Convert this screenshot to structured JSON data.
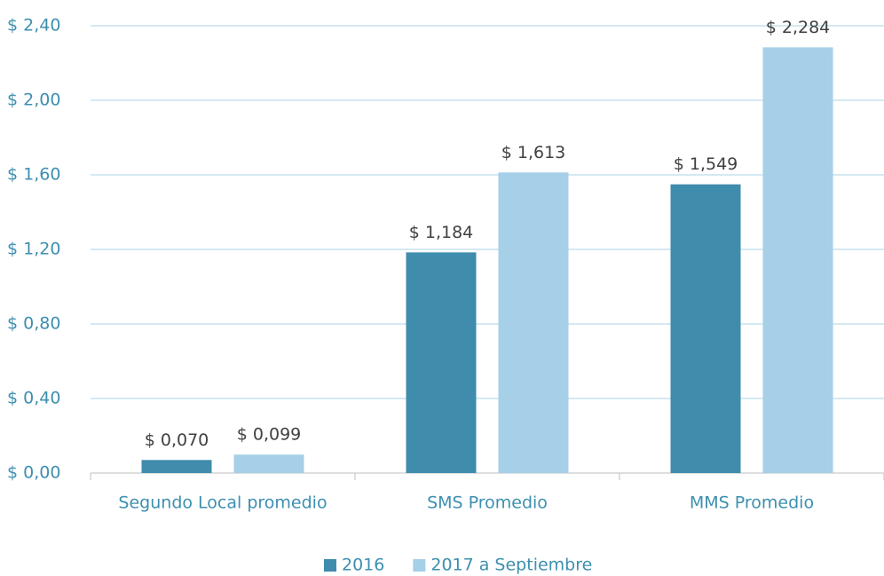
{
  "chart_data": {
    "type": "bar",
    "categories": [
      "Segundo Local promedio",
      "SMS Promedio",
      "MMS Promedio"
    ],
    "series": [
      {
        "name": "2016",
        "color": "#3f8cad",
        "values": [
          0.07,
          1.184,
          1.549
        ],
        "value_labels": [
          "$ 0,070",
          "$ 1,184",
          "$ 1,549"
        ]
      },
      {
        "name": "2017 a Septiembre",
        "color": "#a6cfe8",
        "values": [
          0.099,
          1.613,
          2.284
        ],
        "value_labels": [
          "$ 0,099",
          "$ 1,613",
          "$ 2,284"
        ]
      }
    ],
    "ylim": [
      0,
      2.4
    ],
    "yticks": [
      {
        "value": 0,
        "label": "$ 0,00"
      },
      {
        "value": 0.4,
        "label": "$ 0,40"
      },
      {
        "value": 0.8,
        "label": "$ 0,80"
      },
      {
        "value": 1.2,
        "label": "$ 1,20"
      },
      {
        "value": 1.6,
        "label": "$ 1,60"
      },
      {
        "value": 2.0,
        "label": "$ 2,00"
      },
      {
        "value": 2.4,
        "label": "$ 2,40"
      }
    ],
    "grid": true,
    "legend": "bottom"
  }
}
